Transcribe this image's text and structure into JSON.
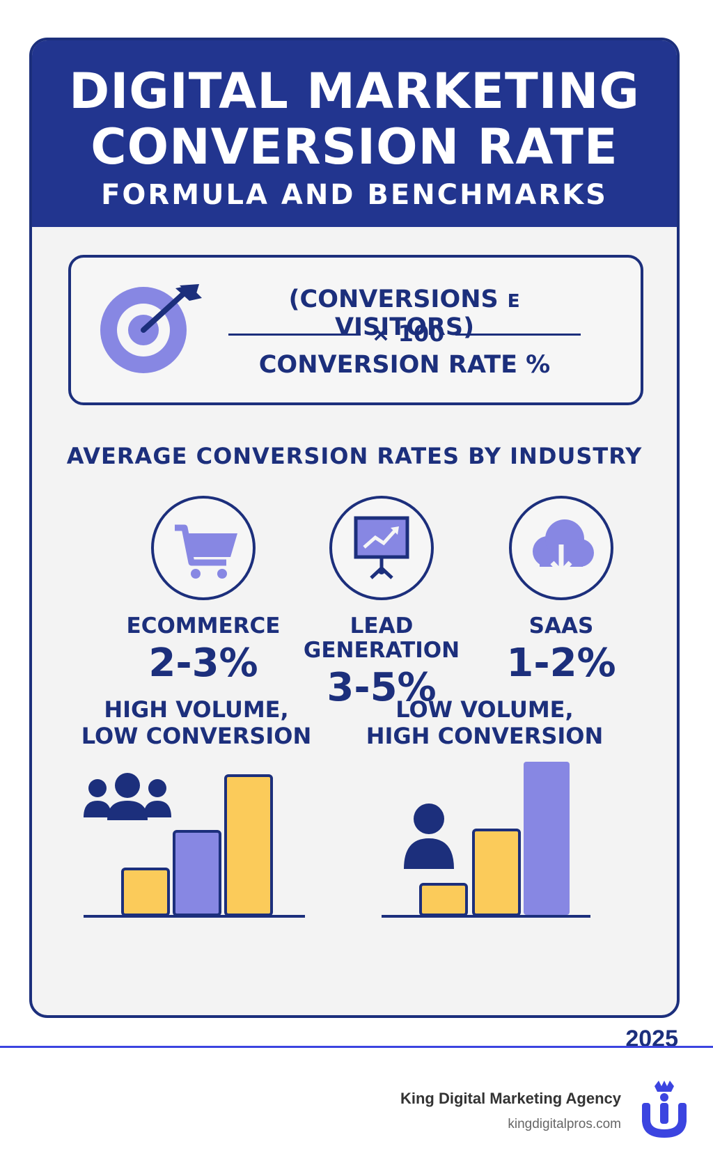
{
  "colors": {
    "navy": "#1c2f7c",
    "header_blue": "#22358f",
    "purple": "#8787e3",
    "yellow": "#fbcb5a",
    "accent_blue": "#3b44e0"
  },
  "header": {
    "title_line1": "DIGITAL MARKETING",
    "title_line2": "CONVERSION RATE",
    "subtitle": "FORMULA AND BENCHMARKS"
  },
  "formula": {
    "icon": "target-icon",
    "numerator": "(CONVERSIONS ᴇ VISITORS)",
    "multiplier": "× 100",
    "denominator": "CONVERSION RATE %"
  },
  "industries": {
    "heading": "AVERAGE CONVERSION RATES BY INDUSTRY",
    "items": [
      {
        "name": "ECOMMERCE",
        "rate": "2-3%",
        "icon": "shopping-cart-icon"
      },
      {
        "name": "LEAD GENERATION",
        "name_line1": "LEAD",
        "name_line2": "GENERATION",
        "rate": "3-5%",
        "icon": "presentation-chart-icon"
      },
      {
        "name": "SAAS",
        "rate": "1-2%",
        "icon": "cloud-download-icon"
      }
    ]
  },
  "volume": {
    "left": {
      "line1": "HIGH VOLUME,",
      "line2": "LOW CONVERSION",
      "icon": "people-group-icon"
    },
    "right": {
      "line1": "LOW VOLUME,",
      "line2": "HIGH CONVERSION",
      "icon": "person-icon"
    }
  },
  "footer": {
    "year": "2025",
    "agency": "King Digital Marketing Agency",
    "website": "kingdigitalpros.com",
    "logo": "crown-logo-icon"
  }
}
